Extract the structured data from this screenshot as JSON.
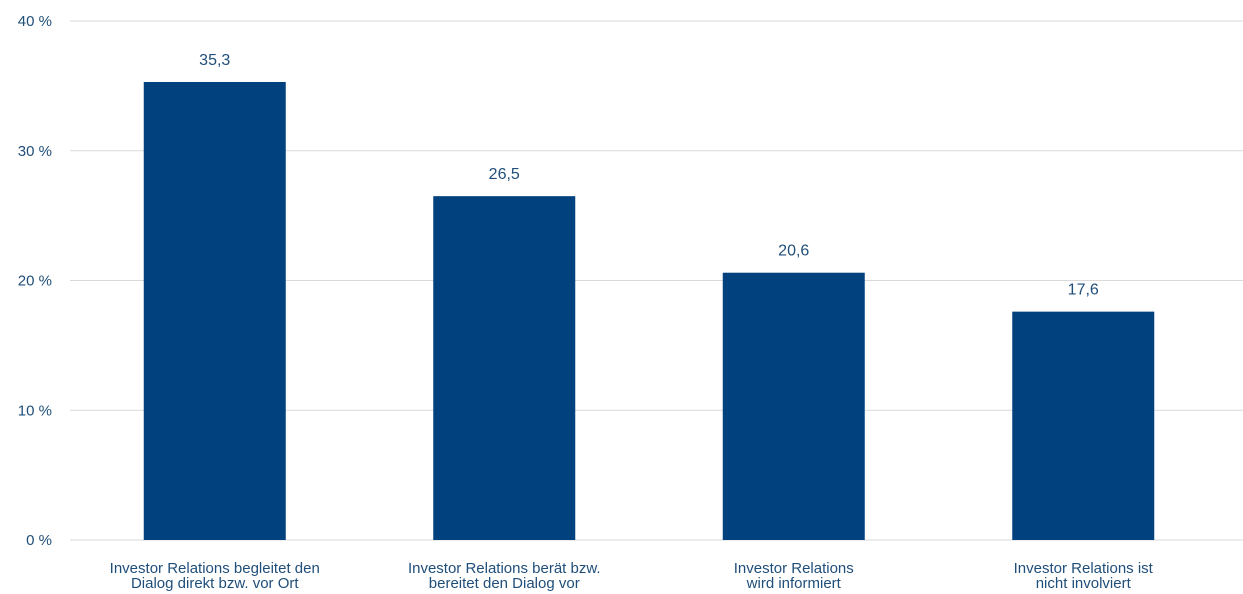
{
  "chart_data": {
    "type": "bar",
    "categories": [
      [
        "Investor Relations begleitet den",
        "Dialog direkt bzw. vor Ort"
      ],
      [
        "Investor Relations berät bzw.",
        "bereitet den Dialog vor"
      ],
      [
        "Investor Relations",
        "wird informiert"
      ],
      [
        "Investor Relations ist",
        "nicht involviert"
      ]
    ],
    "values": [
      35.3,
      26.5,
      20.6,
      17.6
    ],
    "data_labels": [
      "35,3",
      "26,5",
      "20,6",
      "17,6"
    ],
    "yticks": [
      0,
      10,
      20,
      30,
      40
    ],
    "ytick_labels": [
      "0 %",
      "10 %",
      "20 %",
      "30 %",
      "40 %"
    ],
    "ylim": [
      0,
      40
    ],
    "grid": true,
    "legend": "none",
    "colors": {
      "bar": "#00417e",
      "text": "#1f4e79",
      "grid": "#d9d9d9"
    }
  }
}
